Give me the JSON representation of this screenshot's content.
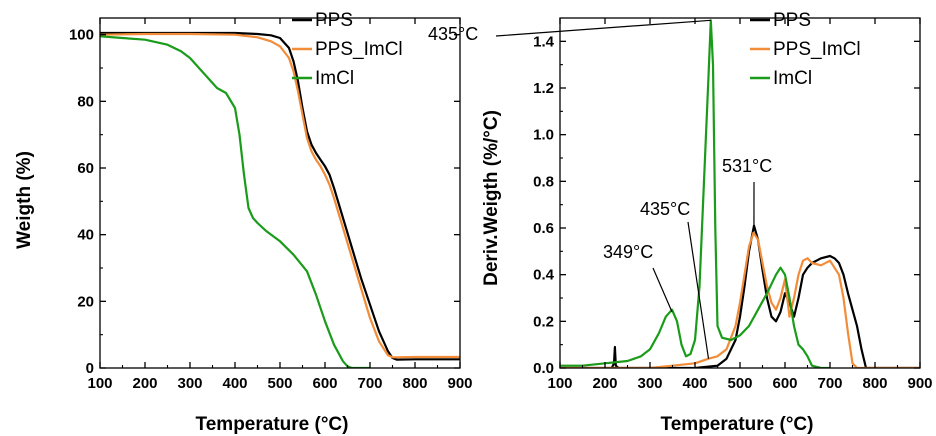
{
  "chart_data": [
    {
      "type": "line",
      "xlabel": "Temperature (°C)",
      "ylabel": "Weigth (%)",
      "xlim": [
        100,
        900
      ],
      "ylim": [
        0,
        105
      ],
      "xticks": [
        100,
        200,
        300,
        400,
        500,
        600,
        700,
        800,
        900
      ],
      "yticks": [
        0,
        20,
        40,
        60,
        80,
        100
      ],
      "grid": false,
      "legend_position": "top-right",
      "series": [
        {
          "name": "PPS",
          "color": "#000000",
          "x": [
            100,
            200,
            300,
            400,
            450,
            480,
            500,
            520,
            530,
            540,
            550,
            560,
            570,
            580,
            590,
            600,
            610,
            620,
            640,
            660,
            680,
            700,
            720,
            740,
            750,
            760,
            800,
            900
          ],
          "y": [
            100.5,
            100.5,
            100.5,
            100.5,
            100.2,
            99.8,
            99.0,
            96.0,
            92.0,
            86.0,
            78.0,
            71.0,
            67.0,
            64.5,
            62.5,
            60.5,
            58.0,
            54.0,
            45.0,
            36.0,
            27.0,
            19.0,
            11.0,
            5.0,
            3.0,
            2.5,
            2.6,
            2.6
          ]
        },
        {
          "name": "PPS_ImCl",
          "color": "#f28c38",
          "x": [
            100,
            200,
            300,
            400,
            450,
            480,
            500,
            520,
            530,
            540,
            550,
            560,
            570,
            580,
            590,
            600,
            610,
            620,
            640,
            660,
            680,
            700,
            720,
            740,
            750,
            760,
            800,
            900
          ],
          "y": [
            100.0,
            100.2,
            100.2,
            100.0,
            99.2,
            98.0,
            96.5,
            93.0,
            89.0,
            83.0,
            76.0,
            69.0,
            65.0,
            62.5,
            60.5,
            58.0,
            55.0,
            51.0,
            42.0,
            33.0,
            24.0,
            15.0,
            8.0,
            3.8,
            3.2,
            3.2,
            3.3,
            3.3
          ]
        },
        {
          "name": "ImCl",
          "color": "#1a9c1a",
          "x": [
            100,
            150,
            200,
            250,
            280,
            300,
            320,
            340,
            350,
            360,
            380,
            400,
            410,
            420,
            430,
            440,
            450,
            470,
            500,
            530,
            560,
            580,
            600,
            620,
            640,
            650,
            660,
            680,
            700
          ],
          "y": [
            99.5,
            99.0,
            98.5,
            97.0,
            95.0,
            93.0,
            90.0,
            87.0,
            85.5,
            84.0,
            82.5,
            78.0,
            70.0,
            58.0,
            48.0,
            45.0,
            43.5,
            41.0,
            38.0,
            34.0,
            29.0,
            22.0,
            14.0,
            7.0,
            2.0,
            0.5,
            0.0,
            0.0,
            0.0
          ]
        }
      ]
    },
    {
      "type": "line",
      "xlabel": "Temperature (°C)",
      "ylabel": "Deriv.Weigth (%/°C)",
      "xlim": [
        100,
        900
      ],
      "ylim": [
        0,
        1.5
      ],
      "xticks": [
        100,
        200,
        300,
        400,
        500,
        600,
        700,
        800,
        900
      ],
      "yticks": [
        0.0,
        0.2,
        0.4,
        0.6,
        0.8,
        1.0,
        1.2,
        1.4
      ],
      "grid": false,
      "legend_position": "top-right",
      "annotations": [
        {
          "text": "435°C",
          "point": [
            435,
            1.49
          ]
        },
        {
          "text": "531°C",
          "point": [
            531,
            0.6
          ]
        },
        {
          "text": "435°C",
          "point": [
            430,
            0.04
          ]
        },
        {
          "text": "349°C",
          "point": [
            349,
            0.24
          ]
        }
      ],
      "series": [
        {
          "name": "PPS",
          "color": "#000000",
          "x": [
            100,
            200,
            215,
            220,
            222,
            224,
            230,
            300,
            400,
            450,
            470,
            490,
            500,
            510,
            520,
            531,
            540,
            550,
            560,
            570,
            580,
            590,
            600,
            610,
            620,
            630,
            640,
            650,
            660,
            680,
            700,
            710,
            720,
            730,
            740,
            750,
            760,
            770,
            780,
            800,
            900
          ],
          "y": [
            0.0,
            0.0,
            0.0,
            0.02,
            0.09,
            0.01,
            0.0,
            0.0,
            0.0,
            0.01,
            0.04,
            0.12,
            0.22,
            0.35,
            0.5,
            0.61,
            0.55,
            0.42,
            0.3,
            0.22,
            0.2,
            0.24,
            0.32,
            0.28,
            0.22,
            0.3,
            0.4,
            0.43,
            0.45,
            0.47,
            0.48,
            0.47,
            0.45,
            0.4,
            0.32,
            0.25,
            0.18,
            0.08,
            0.0,
            0.0,
            0.0
          ]
        },
        {
          "name": "PPS_ImCl",
          "color": "#f28c38",
          "x": [
            100,
            300,
            350,
            400,
            430,
            450,
            470,
            490,
            500,
            510,
            520,
            530,
            540,
            550,
            560,
            570,
            580,
            590,
            600,
            610,
            620,
            630,
            640,
            650,
            660,
            680,
            700,
            720,
            730,
            740,
            750,
            760,
            800,
            900
          ],
          "y": [
            0.0,
            0.0,
            0.01,
            0.02,
            0.04,
            0.05,
            0.08,
            0.18,
            0.28,
            0.4,
            0.52,
            0.58,
            0.55,
            0.45,
            0.35,
            0.28,
            0.25,
            0.3,
            0.38,
            0.22,
            0.3,
            0.4,
            0.46,
            0.47,
            0.45,
            0.44,
            0.46,
            0.4,
            0.3,
            0.15,
            0.02,
            0.0,
            0.0,
            0.0
          ]
        },
        {
          "name": "ImCl",
          "color": "#1a9c1a",
          "x": [
            100,
            150,
            200,
            250,
            280,
            300,
            320,
            335,
            349,
            360,
            370,
            380,
            390,
            400,
            410,
            420,
            430,
            435,
            440,
            445,
            450,
            460,
            480,
            500,
            520,
            540,
            560,
            580,
            590,
            600,
            610,
            620,
            630,
            640,
            650,
            660,
            680,
            700
          ],
          "y": [
            0.01,
            0.01,
            0.02,
            0.03,
            0.05,
            0.08,
            0.15,
            0.22,
            0.25,
            0.2,
            0.1,
            0.05,
            0.06,
            0.12,
            0.35,
            0.8,
            1.25,
            1.49,
            1.3,
            0.6,
            0.18,
            0.13,
            0.12,
            0.14,
            0.18,
            0.25,
            0.32,
            0.4,
            0.43,
            0.4,
            0.3,
            0.18,
            0.1,
            0.08,
            0.05,
            0.01,
            0.0,
            0.0
          ]
        }
      ]
    }
  ]
}
